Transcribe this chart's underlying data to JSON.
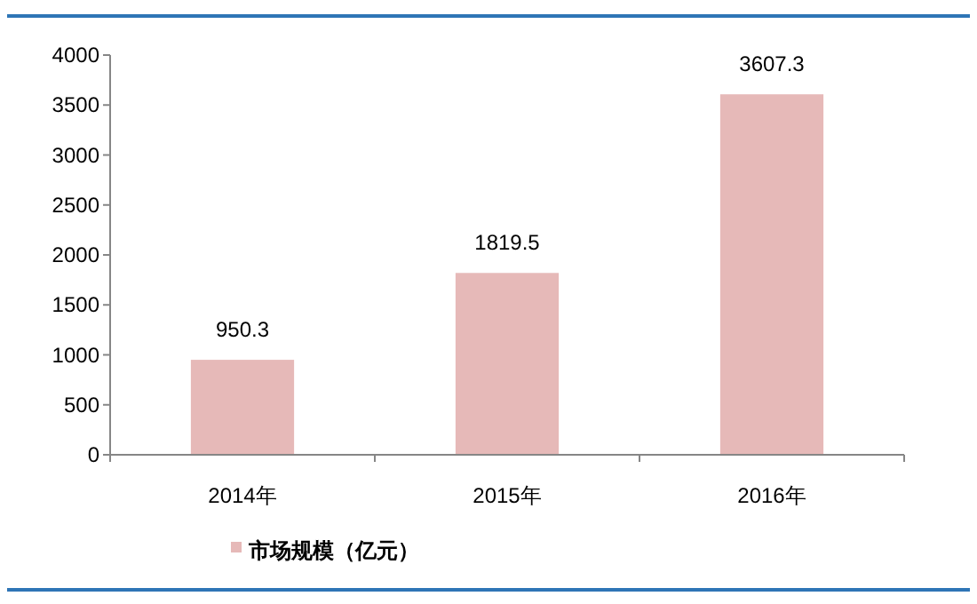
{
  "chart_data": {
    "type": "bar",
    "categories": [
      "2014年",
      "2015年",
      "2016年"
    ],
    "series": [
      {
        "name": "市场规模（亿元）",
        "color": "#e6b9b8",
        "values": [
          950.3,
          1819.5,
          3607.3
        ]
      }
    ],
    "ylim": [
      0,
      4000
    ],
    "yticks": [
      0,
      500,
      1000,
      1500,
      2000,
      2500,
      3000,
      3500,
      4000
    ],
    "data_labels": true,
    "grid": false,
    "legend": "bottom"
  }
}
